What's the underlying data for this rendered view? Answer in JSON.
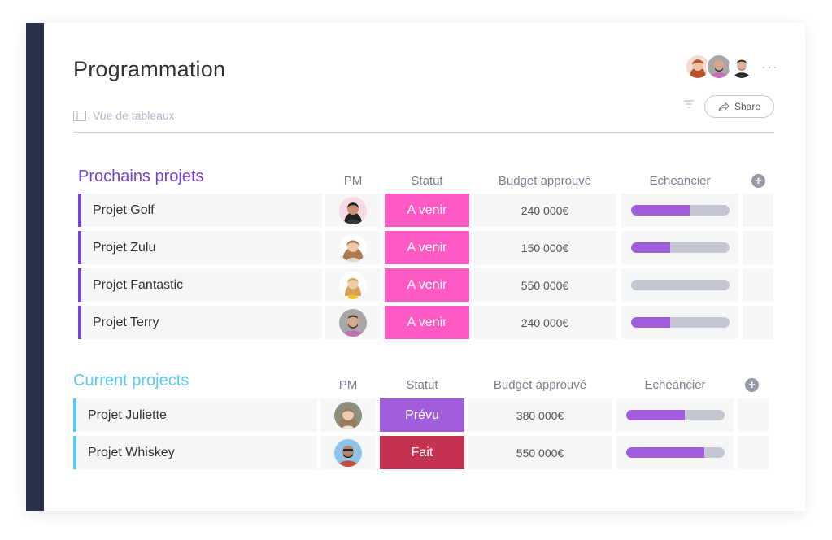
{
  "board": {
    "title": "Programmation",
    "view_label": "Vue de tableaux",
    "share_label": "Share",
    "more_label": "···"
  },
  "colors": {
    "sidebar": "#2b2f4c",
    "group1": "#7b40d6",
    "group2": "#5ac8f0",
    "avenir": "#ff5ac4",
    "prevu": "#a25ddc",
    "fait": "#c4324f",
    "timeline_fill": "#a25ddc",
    "timeline_track": "#c5c7d0"
  },
  "groups": [
    {
      "title": "Prochains projets",
      "columns": {
        "pm": "PM",
        "status": "Statut",
        "budget": "Budget approuvé",
        "timeline": "Echeancier"
      },
      "rows": [
        {
          "name": "Projet Golf",
          "status": "A venir",
          "budget": "240 000€",
          "progress": 0.6
        },
        {
          "name": "Projet Zulu",
          "status": "A venir",
          "budget": "150 000€",
          "progress": 0.4
        },
        {
          "name": "Projet Fantastic",
          "status": "A venir",
          "budget": "550 000€",
          "progress": 0.0
        },
        {
          "name": "Projet Terry",
          "status": "A venir",
          "budget": "240 000€",
          "progress": 0.4
        }
      ]
    },
    {
      "title": "Current projects",
      "columns": {
        "pm": "PM",
        "status": "Statut",
        "budget": "Budget approuvé",
        "timeline": "Echeancier"
      },
      "rows": [
        {
          "name": "Projet Juliette",
          "status": "Prévu",
          "budget": "380 000€",
          "progress": 0.6
        },
        {
          "name": "Projet Whiskey",
          "status": "Fait",
          "budget": "550 000€",
          "progress": 0.8
        }
      ]
    }
  ]
}
